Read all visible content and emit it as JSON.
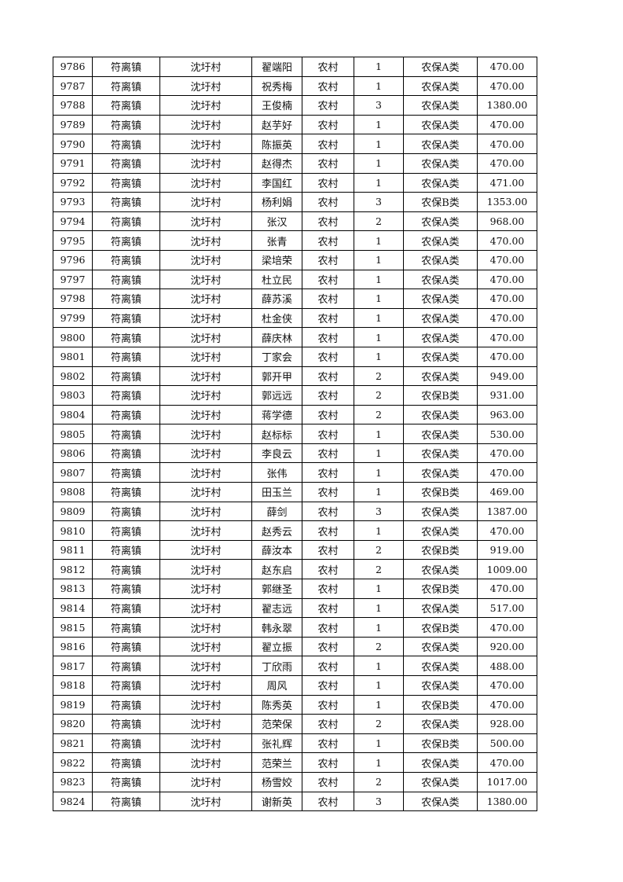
{
  "table": {
    "rows": [
      [
        "9786",
        "符离镇",
        "沈圩村",
        "翟端阳",
        "农村",
        "1",
        "农保A类",
        "470.00"
      ],
      [
        "9787",
        "符离镇",
        "沈圩村",
        "祝秀梅",
        "农村",
        "1",
        "农保A类",
        "470.00"
      ],
      [
        "9788",
        "符离镇",
        "沈圩村",
        "王俊楠",
        "农村",
        "3",
        "农保A类",
        "1380.00"
      ],
      [
        "9789",
        "符离镇",
        "沈圩村",
        "赵芋好",
        "农村",
        "1",
        "农保A类",
        "470.00"
      ],
      [
        "9790",
        "符离镇",
        "沈圩村",
        "陈振英",
        "农村",
        "1",
        "农保A类",
        "470.00"
      ],
      [
        "9791",
        "符离镇",
        "沈圩村",
        "赵得杰",
        "农村",
        "1",
        "农保A类",
        "470.00"
      ],
      [
        "9792",
        "符离镇",
        "沈圩村",
        "李国红",
        "农村",
        "1",
        "农保A类",
        "471.00"
      ],
      [
        "9793",
        "符离镇",
        "沈圩村",
        "杨利娟",
        "农村",
        "3",
        "农保B类",
        "1353.00"
      ],
      [
        "9794",
        "符离镇",
        "沈圩村",
        "张汉",
        "农村",
        "2",
        "农保A类",
        "968.00"
      ],
      [
        "9795",
        "符离镇",
        "沈圩村",
        "张青",
        "农村",
        "1",
        "农保A类",
        "470.00"
      ],
      [
        "9796",
        "符离镇",
        "沈圩村",
        "梁培荣",
        "农村",
        "1",
        "农保A类",
        "470.00"
      ],
      [
        "9797",
        "符离镇",
        "沈圩村",
        "杜立民",
        "农村",
        "1",
        "农保A类",
        "470.00"
      ],
      [
        "9798",
        "符离镇",
        "沈圩村",
        "薛苏溪",
        "农村",
        "1",
        "农保A类",
        "470.00"
      ],
      [
        "9799",
        "符离镇",
        "沈圩村",
        "杜金侠",
        "农村",
        "1",
        "农保A类",
        "470.00"
      ],
      [
        "9800",
        "符离镇",
        "沈圩村",
        "薛庆林",
        "农村",
        "1",
        "农保A类",
        "470.00"
      ],
      [
        "9801",
        "符离镇",
        "沈圩村",
        "丁家会",
        "农村",
        "1",
        "农保A类",
        "470.00"
      ],
      [
        "9802",
        "符离镇",
        "沈圩村",
        "郭开甲",
        "农村",
        "2",
        "农保A类",
        "949.00"
      ],
      [
        "9803",
        "符离镇",
        "沈圩村",
        "郭远远",
        "农村",
        "2",
        "农保B类",
        "931.00"
      ],
      [
        "9804",
        "符离镇",
        "沈圩村",
        "蒋学德",
        "农村",
        "2",
        "农保A类",
        "963.00"
      ],
      [
        "9805",
        "符离镇",
        "沈圩村",
        "赵标标",
        "农村",
        "1",
        "农保A类",
        "530.00"
      ],
      [
        "9806",
        "符离镇",
        "沈圩村",
        "李良云",
        "农村",
        "1",
        "农保A类",
        "470.00"
      ],
      [
        "9807",
        "符离镇",
        "沈圩村",
        "张伟",
        "农村",
        "1",
        "农保A类",
        "470.00"
      ],
      [
        "9808",
        "符离镇",
        "沈圩村",
        "田玉兰",
        "农村",
        "1",
        "农保B类",
        "469.00"
      ],
      [
        "9809",
        "符离镇",
        "沈圩村",
        "薛剑",
        "农村",
        "3",
        "农保A类",
        "1387.00"
      ],
      [
        "9810",
        "符离镇",
        "沈圩村",
        "赵秀云",
        "农村",
        "1",
        "农保A类",
        "470.00"
      ],
      [
        "9811",
        "符离镇",
        "沈圩村",
        "薛汝本",
        "农村",
        "2",
        "农保B类",
        "919.00"
      ],
      [
        "9812",
        "符离镇",
        "沈圩村",
        "赵东启",
        "农村",
        "2",
        "农保A类",
        "1009.00"
      ],
      [
        "9813",
        "符离镇",
        "沈圩村",
        "郭继圣",
        "农村",
        "1",
        "农保B类",
        "470.00"
      ],
      [
        "9814",
        "符离镇",
        "沈圩村",
        "翟志远",
        "农村",
        "1",
        "农保A类",
        "517.00"
      ],
      [
        "9815",
        "符离镇",
        "沈圩村",
        "韩永翠",
        "农村",
        "1",
        "农保B类",
        "470.00"
      ],
      [
        "9816",
        "符离镇",
        "沈圩村",
        "翟立振",
        "农村",
        "2",
        "农保A类",
        "920.00"
      ],
      [
        "9817",
        "符离镇",
        "沈圩村",
        "丁欣雨",
        "农村",
        "1",
        "农保A类",
        "488.00"
      ],
      [
        "9818",
        "符离镇",
        "沈圩村",
        "周风",
        "农村",
        "1",
        "农保A类",
        "470.00"
      ],
      [
        "9819",
        "符离镇",
        "沈圩村",
        "陈秀英",
        "农村",
        "1",
        "农保B类",
        "470.00"
      ],
      [
        "9820",
        "符离镇",
        "沈圩村",
        "范荣保",
        "农村",
        "2",
        "农保A类",
        "928.00"
      ],
      [
        "9821",
        "符离镇",
        "沈圩村",
        "张礼辉",
        "农村",
        "1",
        "农保B类",
        "500.00"
      ],
      [
        "9822",
        "符离镇",
        "沈圩村",
        "范荣兰",
        "农村",
        "1",
        "农保A类",
        "470.00"
      ],
      [
        "9823",
        "符离镇",
        "沈圩村",
        "杨雪姣",
        "农村",
        "2",
        "农保A类",
        "1017.00"
      ],
      [
        "9824",
        "符离镇",
        "沈圩村",
        "谢新英",
        "农村",
        "3",
        "农保A类",
        "1380.00"
      ]
    ]
  }
}
